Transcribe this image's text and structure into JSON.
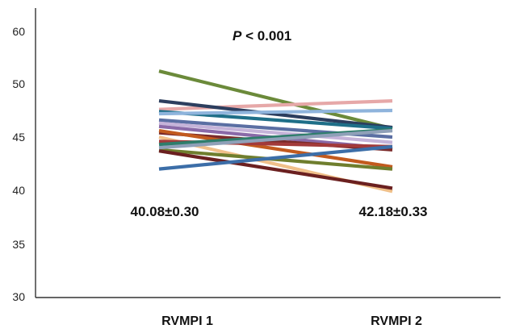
{
  "chart_data": {
    "type": "line",
    "categories": [
      "RVMPI 1",
      "RVMPI 2"
    ],
    "ylim": [
      30,
      60
    ],
    "y_ticks": [
      "30",
      "35",
      "40",
      "45",
      "50",
      "60"
    ],
    "grid": false,
    "legend": "none",
    "pvalue": {
      "symbol": "P",
      "text": " < 0.001"
    },
    "annotations": [
      "40.08±0.30",
      "42.18±0.33"
    ],
    "series": [
      {
        "color": "#6b8a3a",
        "values": [
          51.2,
          45.8
        ]
      },
      {
        "color": "#e6a8a8",
        "values": [
          47.6,
          48.4
        ]
      },
      {
        "color": "#2c3e5e",
        "values": [
          48.4,
          45.9
        ]
      },
      {
        "color": "#1f6f88",
        "values": [
          47.4,
          45.8
        ]
      },
      {
        "color": "#8fb4dc",
        "values": [
          47.2,
          47.5
        ]
      },
      {
        "color": "#5b6fa3",
        "values": [
          46.6,
          45.0
        ]
      },
      {
        "color": "#c5b3d9",
        "values": [
          46.3,
          44.5
        ]
      },
      {
        "color": "#8a6aa8",
        "values": [
          46.0,
          43.9
        ]
      },
      {
        "color": "#7a2a2a",
        "values": [
          45.4,
          43.8
        ]
      },
      {
        "color": "#c25a1e",
        "values": [
          45.6,
          42.2
        ]
      },
      {
        "color": "#f0c08a",
        "values": [
          45.0,
          39.9
        ]
      },
      {
        "color": "#a23a3a",
        "values": [
          44.6,
          44.1
        ]
      },
      {
        "color": "#2e7d6b",
        "values": [
          44.3,
          45.7
        ]
      },
      {
        "color": "#6f7e2e",
        "values": [
          43.8,
          42.0
        ]
      },
      {
        "color": "#6b2020",
        "values": [
          43.7,
          40.2
        ]
      },
      {
        "color": "#3c6ea8",
        "values": [
          42.0,
          44.1
        ]
      },
      {
        "color": "#8fa0b8",
        "values": [
          44.0,
          45.6
        ]
      }
    ]
  }
}
